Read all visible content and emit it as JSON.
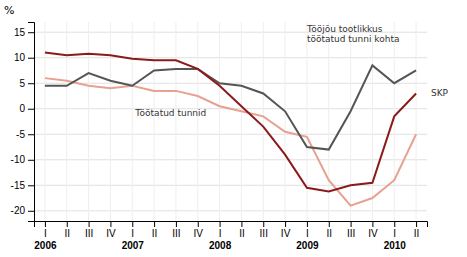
{
  "chart_data": {
    "type": "line",
    "ylabel": "%",
    "categories": [
      "I",
      "II",
      "III",
      "IV",
      "I",
      "II",
      "III",
      "IV",
      "I",
      "II",
      "III",
      "IV",
      "I",
      "II",
      "III",
      "IV",
      "I",
      "II"
    ],
    "group_labels": [
      "2006",
      null,
      null,
      null,
      "2007",
      null,
      null,
      null,
      "2008",
      null,
      null,
      null,
      "2009",
      null,
      null,
      null,
      "2010",
      null
    ],
    "series": [
      {
        "name": "Töötatud tunnid",
        "color": "#E8A090",
        "values": [
          6.0,
          5.5,
          4.5,
          4.0,
          4.5,
          3.5,
          3.5,
          2.5,
          0.5,
          -0.5,
          -1.5,
          -4.5,
          -5.5,
          -14.0,
          -19.0,
          -17.5,
          -14.0,
          -5.0
        ]
      },
      {
        "name": "Tööjõu tootlikkus\ntöötatud tunni kohta",
        "color": "#555555",
        "values": [
          4.5,
          4.5,
          7.0,
          5.5,
          4.5,
          7.5,
          7.8,
          7.8,
          5.0,
          4.5,
          3.0,
          -0.5,
          -7.5,
          -8.0,
          -0.5,
          8.5,
          5.0,
          7.5
        ]
      },
      {
        "name": "SKP",
        "color": "#8B1A1A",
        "values": [
          11.0,
          10.5,
          10.8,
          10.5,
          9.8,
          9.5,
          9.5,
          7.8,
          4.5,
          0.5,
          -3.5,
          -9.0,
          -15.5,
          -16.2,
          -15.0,
          -14.5,
          -1.5,
          3.0
        ]
      }
    ],
    "ylim": [
      -22,
      17
    ],
    "yticks": [
      -20,
      -15,
      -10,
      -5,
      0,
      5,
      10,
      15
    ],
    "grid": true
  }
}
